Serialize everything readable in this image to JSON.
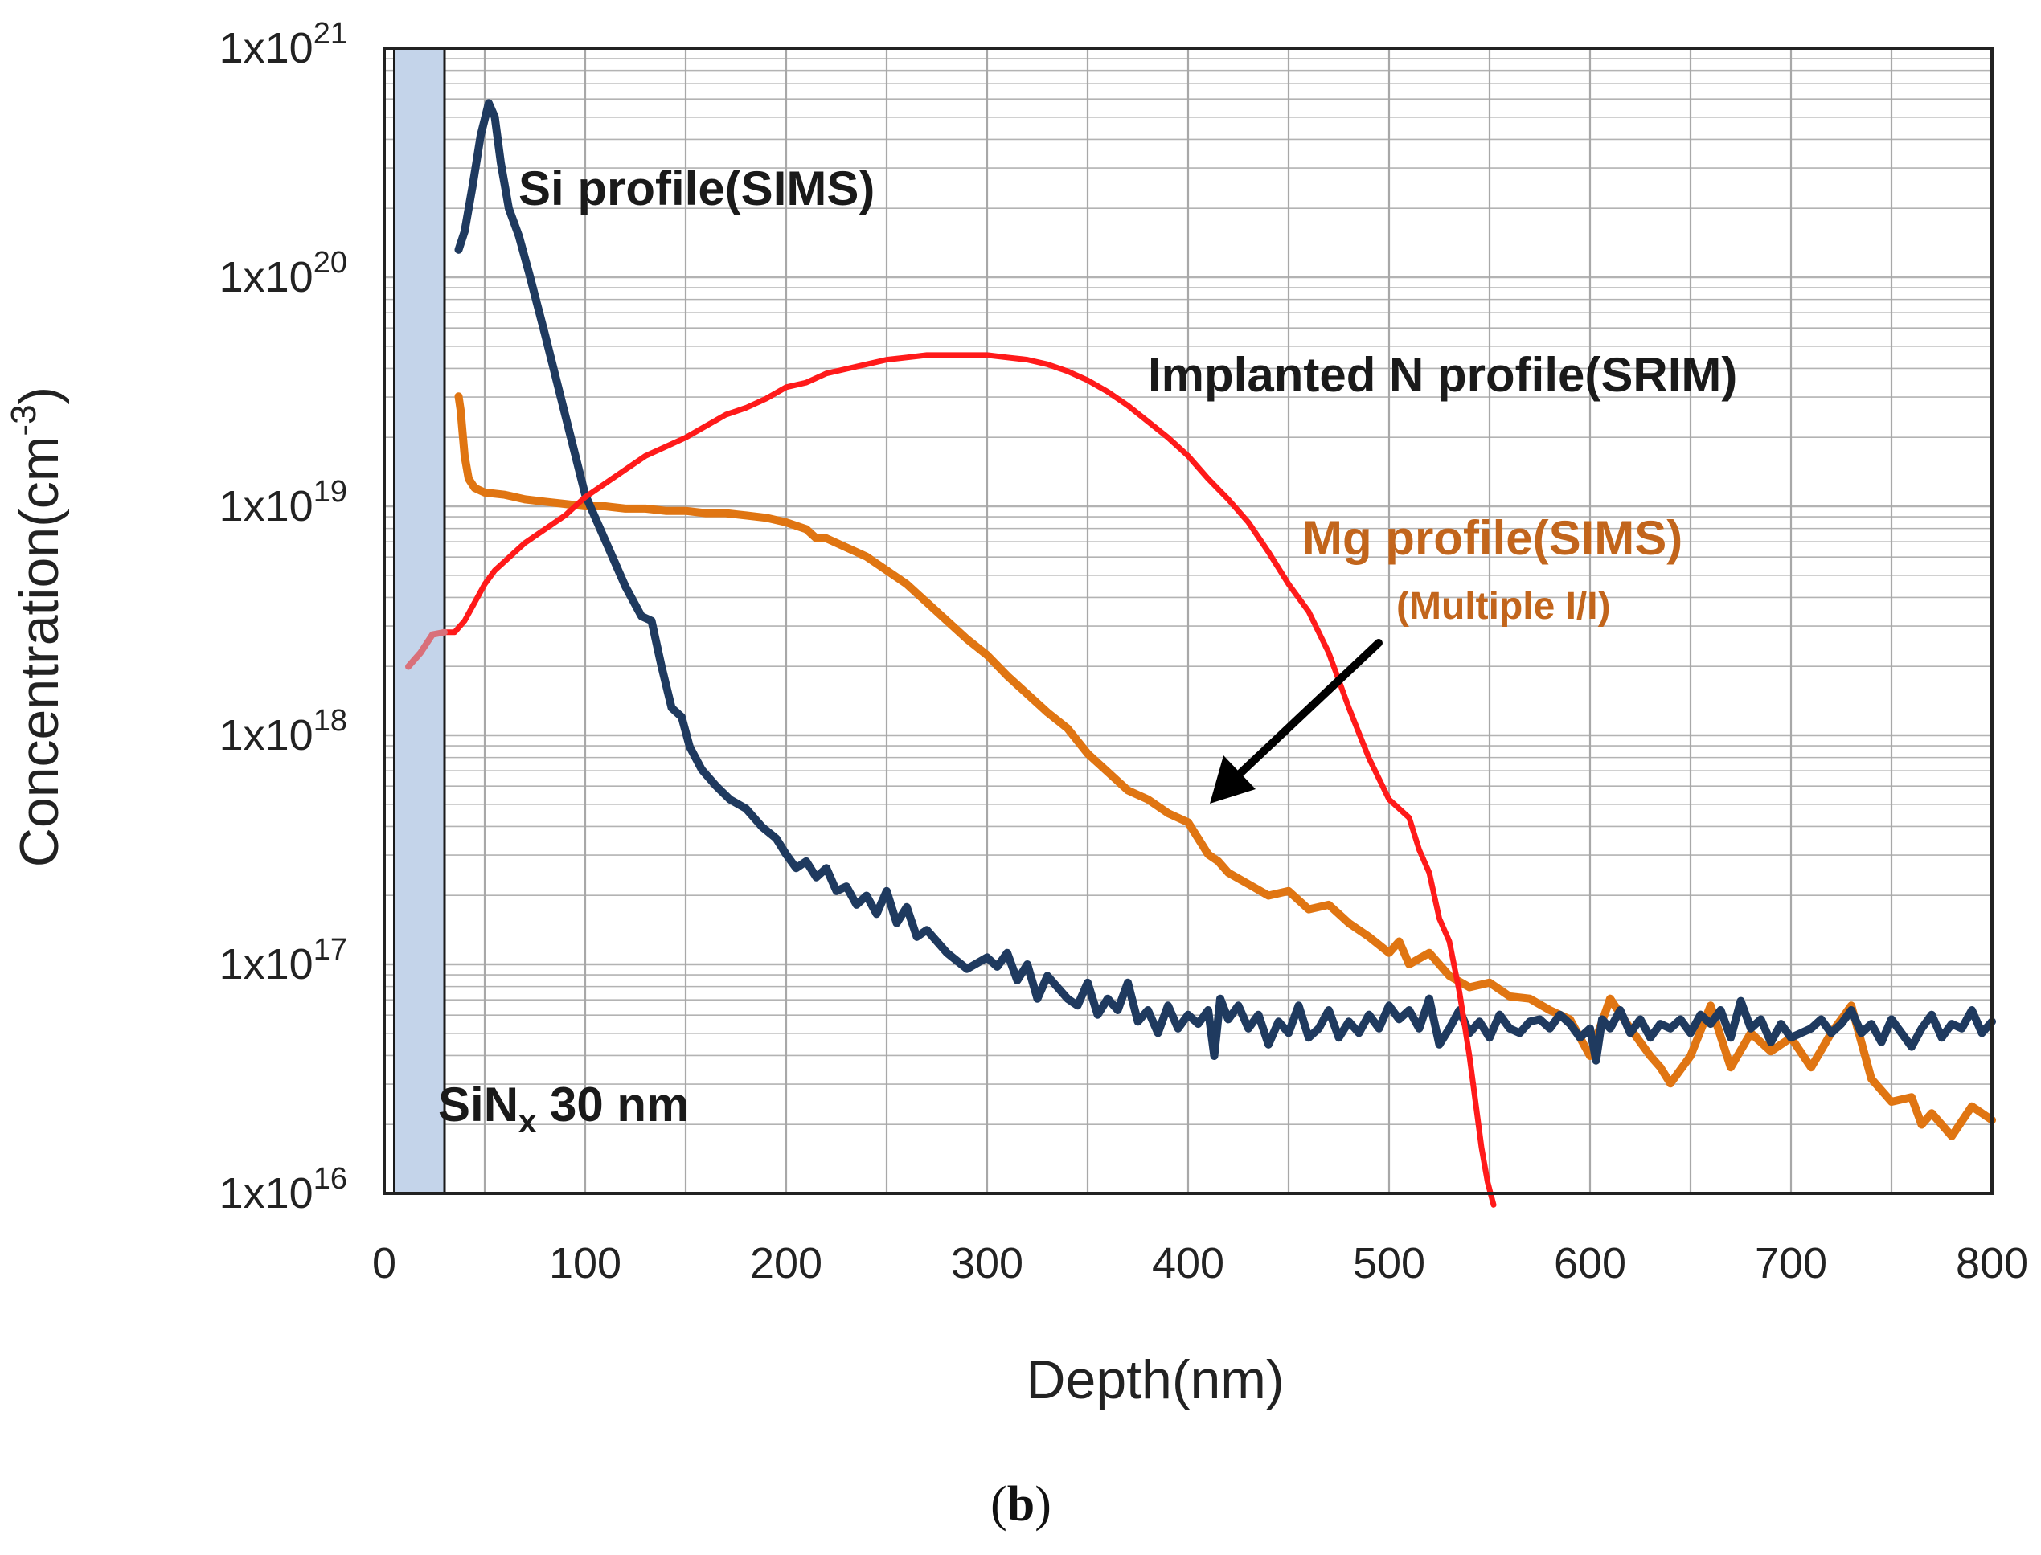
{
  "chart_data": {
    "type": "line",
    "title": "",
    "caption": "(b)",
    "xlabel": "Depth(nm)",
    "ylabel": "Concentration(cm-3)",
    "ylabel_parts": {
      "main": "Concentration(cm",
      "exp": "-3",
      "close": ")"
    },
    "xlim": [
      0,
      800
    ],
    "ylim_log10": [
      16,
      21
    ],
    "x_ticks": [
      "0",
      "100",
      "200",
      "300",
      "400",
      "500",
      "600",
      "700",
      "800"
    ],
    "x_tick_values": [
      0,
      100,
      200,
      300,
      400,
      500,
      600,
      700,
      800
    ],
    "y_ticks": [
      {
        "base": "1x10",
        "exp": "16",
        "log": 16
      },
      {
        "base": "1x10",
        "exp": "17",
        "log": 17
      },
      {
        "base": "1x10",
        "exp": "18",
        "log": 18
      },
      {
        "base": "1x10",
        "exp": "19",
        "log": 19
      },
      {
        "base": "1x10",
        "exp": "20",
        "log": 20
      },
      {
        "base": "1x10",
        "exp": "21",
        "log": 21
      }
    ],
    "shaded_region": {
      "label": "SiN",
      "label_sub": "x",
      "label_rest": " 30 nm",
      "x_range": [
        5,
        30
      ],
      "color": "#c4d4ea"
    },
    "series": [
      {
        "name": "Si profile(SIMS)",
        "label": "Si profile(SIMS)",
        "color": "#1f3a5f",
        "x": [
          37,
          40,
          44,
          48,
          52,
          55,
          58,
          62,
          67,
          72,
          80,
          90,
          100,
          110,
          120,
          128,
          133,
          138,
          143,
          148,
          152,
          158,
          165,
          172,
          180,
          188,
          195,
          200,
          205,
          210,
          215,
          220,
          225,
          230,
          235,
          240,
          245,
          250,
          255,
          260,
          265,
          270,
          280,
          290,
          300,
          305,
          310,
          315,
          320,
          325,
          330,
          335,
          340,
          345,
          350,
          355,
          360,
          365,
          370,
          375,
          380,
          385,
          390,
          395,
          400,
          405,
          410,
          413,
          416,
          420,
          425,
          430,
          435,
          440,
          445,
          450,
          455,
          460,
          465,
          470,
          475,
          480,
          485,
          490,
          495,
          500,
          505,
          510,
          515,
          520,
          525,
          530,
          535,
          540,
          545,
          550,
          555,
          560,
          565,
          570,
          575,
          580,
          585,
          590,
          595,
          600,
          603,
          606,
          610,
          615,
          620,
          625,
          630,
          635,
          640,
          645,
          650,
          655,
          660,
          665,
          670,
          675,
          680,
          685,
          690,
          695,
          700,
          705,
          710,
          715,
          720,
          725,
          730,
          735,
          740,
          745,
          750,
          755,
          760,
          765,
          770,
          775,
          780,
          785,
          790,
          795,
          800
        ],
        "y_log10": [
          20.12,
          20.2,
          20.4,
          20.62,
          20.76,
          20.7,
          20.5,
          20.3,
          20.18,
          20.02,
          19.75,
          19.4,
          19.05,
          18.85,
          18.65,
          18.52,
          18.5,
          18.3,
          18.12,
          18.08,
          17.95,
          17.85,
          17.78,
          17.72,
          17.68,
          17.6,
          17.55,
          17.48,
          17.42,
          17.45,
          17.38,
          17.42,
          17.32,
          17.34,
          17.26,
          17.3,
          17.22,
          17.32,
          17.18,
          17.25,
          17.12,
          17.15,
          17.05,
          16.98,
          17.03,
          16.99,
          17.05,
          16.93,
          17.0,
          16.85,
          16.95,
          16.9,
          16.85,
          16.82,
          16.92,
          16.78,
          16.85,
          16.8,
          16.92,
          16.75,
          16.8,
          16.7,
          16.82,
          16.72,
          16.78,
          16.74,
          16.8,
          16.6,
          16.85,
          16.76,
          16.82,
          16.72,
          16.78,
          16.65,
          16.75,
          16.7,
          16.82,
          16.68,
          16.72,
          16.8,
          16.68,
          16.75,
          16.7,
          16.78,
          16.72,
          16.82,
          16.76,
          16.8,
          16.72,
          16.85,
          16.65,
          16.72,
          16.8,
          16.7,
          16.75,
          16.68,
          16.78,
          16.72,
          16.7,
          16.75,
          16.76,
          16.72,
          16.78,
          16.74,
          16.68,
          16.72,
          16.58,
          16.76,
          16.72,
          16.8,
          16.7,
          16.76,
          16.68,
          16.74,
          16.72,
          16.76,
          16.7,
          16.78,
          16.74,
          16.8,
          16.68,
          16.84,
          16.72,
          16.76,
          16.66,
          16.74,
          16.68,
          16.7,
          16.72,
          16.76,
          16.7,
          16.74,
          16.8,
          16.7,
          16.74,
          16.66,
          16.76,
          16.7,
          16.64,
          16.72,
          16.78,
          16.68,
          16.74,
          16.72,
          16.8,
          16.7,
          16.75
        ]
      },
      {
        "name": "Implanted N profile(SRIM)",
        "label": "Implanted N profile(SRIM)",
        "color": "#ff1a1a",
        "x": [
          30,
          35,
          40,
          45,
          50,
          55,
          60,
          70,
          80,
          90,
          100,
          110,
          120,
          130,
          140,
          150,
          160,
          170,
          180,
          190,
          200,
          210,
          220,
          230,
          240,
          250,
          260,
          270,
          280,
          290,
          300,
          310,
          320,
          330,
          340,
          350,
          360,
          370,
          380,
          390,
          400,
          410,
          420,
          430,
          440,
          450,
          460,
          470,
          480,
          490,
          500,
          505,
          510,
          515,
          520,
          525,
          530,
          535,
          540,
          543,
          546,
          549,
          552
        ],
        "y_log10": [
          18.45,
          18.45,
          18.5,
          18.58,
          18.66,
          18.72,
          18.76,
          18.84,
          18.9,
          18.96,
          19.04,
          19.1,
          19.16,
          19.22,
          19.26,
          19.3,
          19.35,
          19.4,
          19.43,
          19.47,
          19.52,
          19.54,
          19.58,
          19.6,
          19.62,
          19.64,
          19.65,
          19.66,
          19.66,
          19.66,
          19.66,
          19.65,
          19.64,
          19.62,
          19.59,
          19.55,
          19.5,
          19.44,
          19.37,
          19.3,
          19.22,
          19.12,
          19.03,
          18.93,
          18.8,
          18.66,
          18.54,
          18.36,
          18.12,
          17.9,
          17.72,
          17.68,
          17.64,
          17.5,
          17.4,
          17.2,
          17.1,
          16.88,
          16.6,
          16.4,
          16.2,
          16.05,
          15.95
        ]
      },
      {
        "name": "Mg profile(SIMS)",
        "label": "Mg profile(SIMS)",
        "sublabel": "(Multiple I/I)",
        "color": "#e07512",
        "x": [
          37,
          38,
          40,
          42,
          45,
          50,
          60,
          70,
          80,
          90,
          100,
          110,
          120,
          130,
          140,
          150,
          160,
          170,
          180,
          190,
          200,
          210,
          215,
          220,
          230,
          240,
          250,
          260,
          270,
          280,
          290,
          300,
          310,
          320,
          330,
          340,
          350,
          360,
          370,
          380,
          390,
          400,
          410,
          415,
          420,
          430,
          440,
          450,
          460,
          470,
          480,
          490,
          500,
          505,
          510,
          520,
          530,
          540,
          550,
          560,
          570,
          580,
          590,
          600,
          610,
          620,
          630,
          635,
          640,
          650,
          660,
          670,
          680,
          690,
          700,
          710,
          720,
          730,
          740,
          750,
          760,
          765,
          770,
          780,
          790,
          800
        ],
        "y_log10": [
          19.48,
          19.42,
          19.22,
          19.12,
          19.08,
          19.06,
          19.05,
          19.03,
          19.02,
          19.01,
          19.0,
          19.0,
          18.99,
          18.99,
          18.98,
          18.98,
          18.97,
          18.97,
          18.96,
          18.95,
          18.93,
          18.9,
          18.86,
          18.86,
          18.82,
          18.78,
          18.72,
          18.66,
          18.58,
          18.5,
          18.42,
          18.35,
          18.26,
          18.18,
          18.1,
          18.03,
          17.92,
          17.84,
          17.76,
          17.72,
          17.66,
          17.62,
          17.48,
          17.45,
          17.4,
          17.35,
          17.3,
          17.32,
          17.24,
          17.26,
          17.18,
          17.12,
          17.05,
          17.1,
          17.0,
          17.05,
          16.95,
          16.9,
          16.92,
          16.86,
          16.85,
          16.8,
          16.76,
          16.6,
          16.85,
          16.72,
          16.6,
          16.55,
          16.48,
          16.6,
          16.82,
          16.55,
          16.7,
          16.62,
          16.68,
          16.55,
          16.7,
          16.82,
          16.5,
          16.4,
          16.42,
          16.3,
          16.35,
          16.25,
          16.38,
          16.32
        ]
      }
    ],
    "annotations": [
      {
        "text": "Si profile(SIMS)",
        "color": "#1a1a1a"
      },
      {
        "text": "Implanted N profile(SRIM)",
        "color": "#1a1a1a"
      },
      {
        "text": "Mg profile(SIMS)",
        "color": "#c2651c"
      },
      {
        "text": "(Multiple I/I)",
        "color": "#c2651c"
      }
    ]
  }
}
